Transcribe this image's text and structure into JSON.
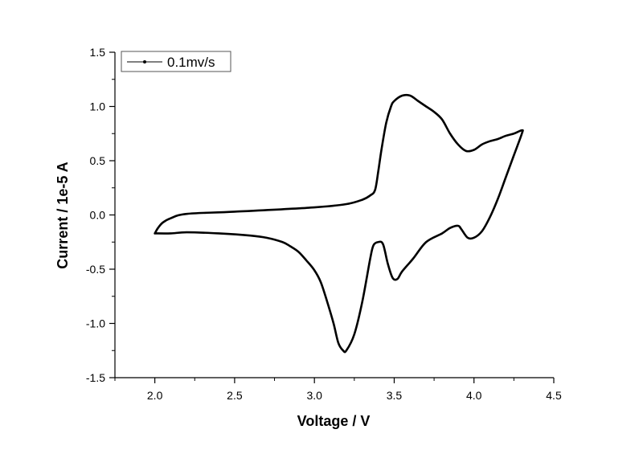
{
  "chart_data": {
    "type": "line",
    "title": "",
    "xlabel": "Voltage / V",
    "ylabel": "Current / 1e-5 A",
    "xlim": [
      1.75,
      4.5
    ],
    "ylim": [
      -1.5,
      1.5
    ],
    "x_ticks": [
      "2.0",
      "2.5",
      "3.0",
      "3.5",
      "4.0",
      "4.5"
    ],
    "x_tick_values": [
      2.0,
      2.5,
      3.0,
      3.5,
      4.0,
      4.5
    ],
    "y_ticks": [
      "1.5",
      "1.0",
      "0.5",
      "0.0",
      "-0.5",
      "-1.0",
      "-1.5"
    ],
    "y_tick_values": [
      1.5,
      1.0,
      0.5,
      0.0,
      -0.5,
      -1.0,
      -1.5
    ],
    "grid": false,
    "legend_position": "top-left",
    "series": [
      {
        "name": "0.1mv/s",
        "color": "#000000",
        "x": [
          2.0,
          2.02,
          2.05,
          2.1,
          2.2,
          2.5,
          3.0,
          3.2,
          3.3,
          3.35,
          3.38,
          3.4,
          3.42,
          3.45,
          3.48,
          3.5,
          3.55,
          3.6,
          3.65,
          3.7,
          3.75,
          3.8,
          3.85,
          3.9,
          3.95,
          4.0,
          4.05,
          4.1,
          4.15,
          4.2,
          4.25,
          4.3,
          4.3,
          4.25,
          4.2,
          4.15,
          4.1,
          4.05,
          4.0,
          3.96,
          3.92,
          3.9,
          3.85,
          3.8,
          3.7,
          3.62,
          3.55,
          3.52,
          3.49,
          3.46,
          3.43,
          3.4,
          3.37,
          3.35,
          3.3,
          3.25,
          3.2,
          3.18,
          3.15,
          3.12,
          3.08,
          3.04,
          3.0,
          2.95,
          2.9,
          2.85,
          2.8,
          2.7,
          2.6,
          2.4,
          2.2,
          2.1,
          2.0
        ],
        "y": [
          -0.17,
          -0.12,
          -0.07,
          -0.03,
          0.01,
          0.03,
          0.07,
          0.1,
          0.14,
          0.18,
          0.23,
          0.4,
          0.6,
          0.85,
          1.0,
          1.05,
          1.1,
          1.1,
          1.05,
          1.0,
          0.95,
          0.88,
          0.75,
          0.65,
          0.59,
          0.6,
          0.65,
          0.68,
          0.7,
          0.73,
          0.75,
          0.78,
          0.75,
          0.55,
          0.35,
          0.15,
          -0.02,
          -0.15,
          -0.21,
          -0.21,
          -0.13,
          -0.1,
          -0.12,
          -0.17,
          -0.25,
          -0.4,
          -0.52,
          -0.59,
          -0.58,
          -0.45,
          -0.27,
          -0.25,
          -0.28,
          -0.4,
          -0.8,
          -1.1,
          -1.25,
          -1.25,
          -1.18,
          -1.0,
          -0.8,
          -0.62,
          -0.51,
          -0.42,
          -0.34,
          -0.29,
          -0.25,
          -0.21,
          -0.19,
          -0.17,
          -0.16,
          -0.17,
          -0.17
        ]
      }
    ]
  }
}
